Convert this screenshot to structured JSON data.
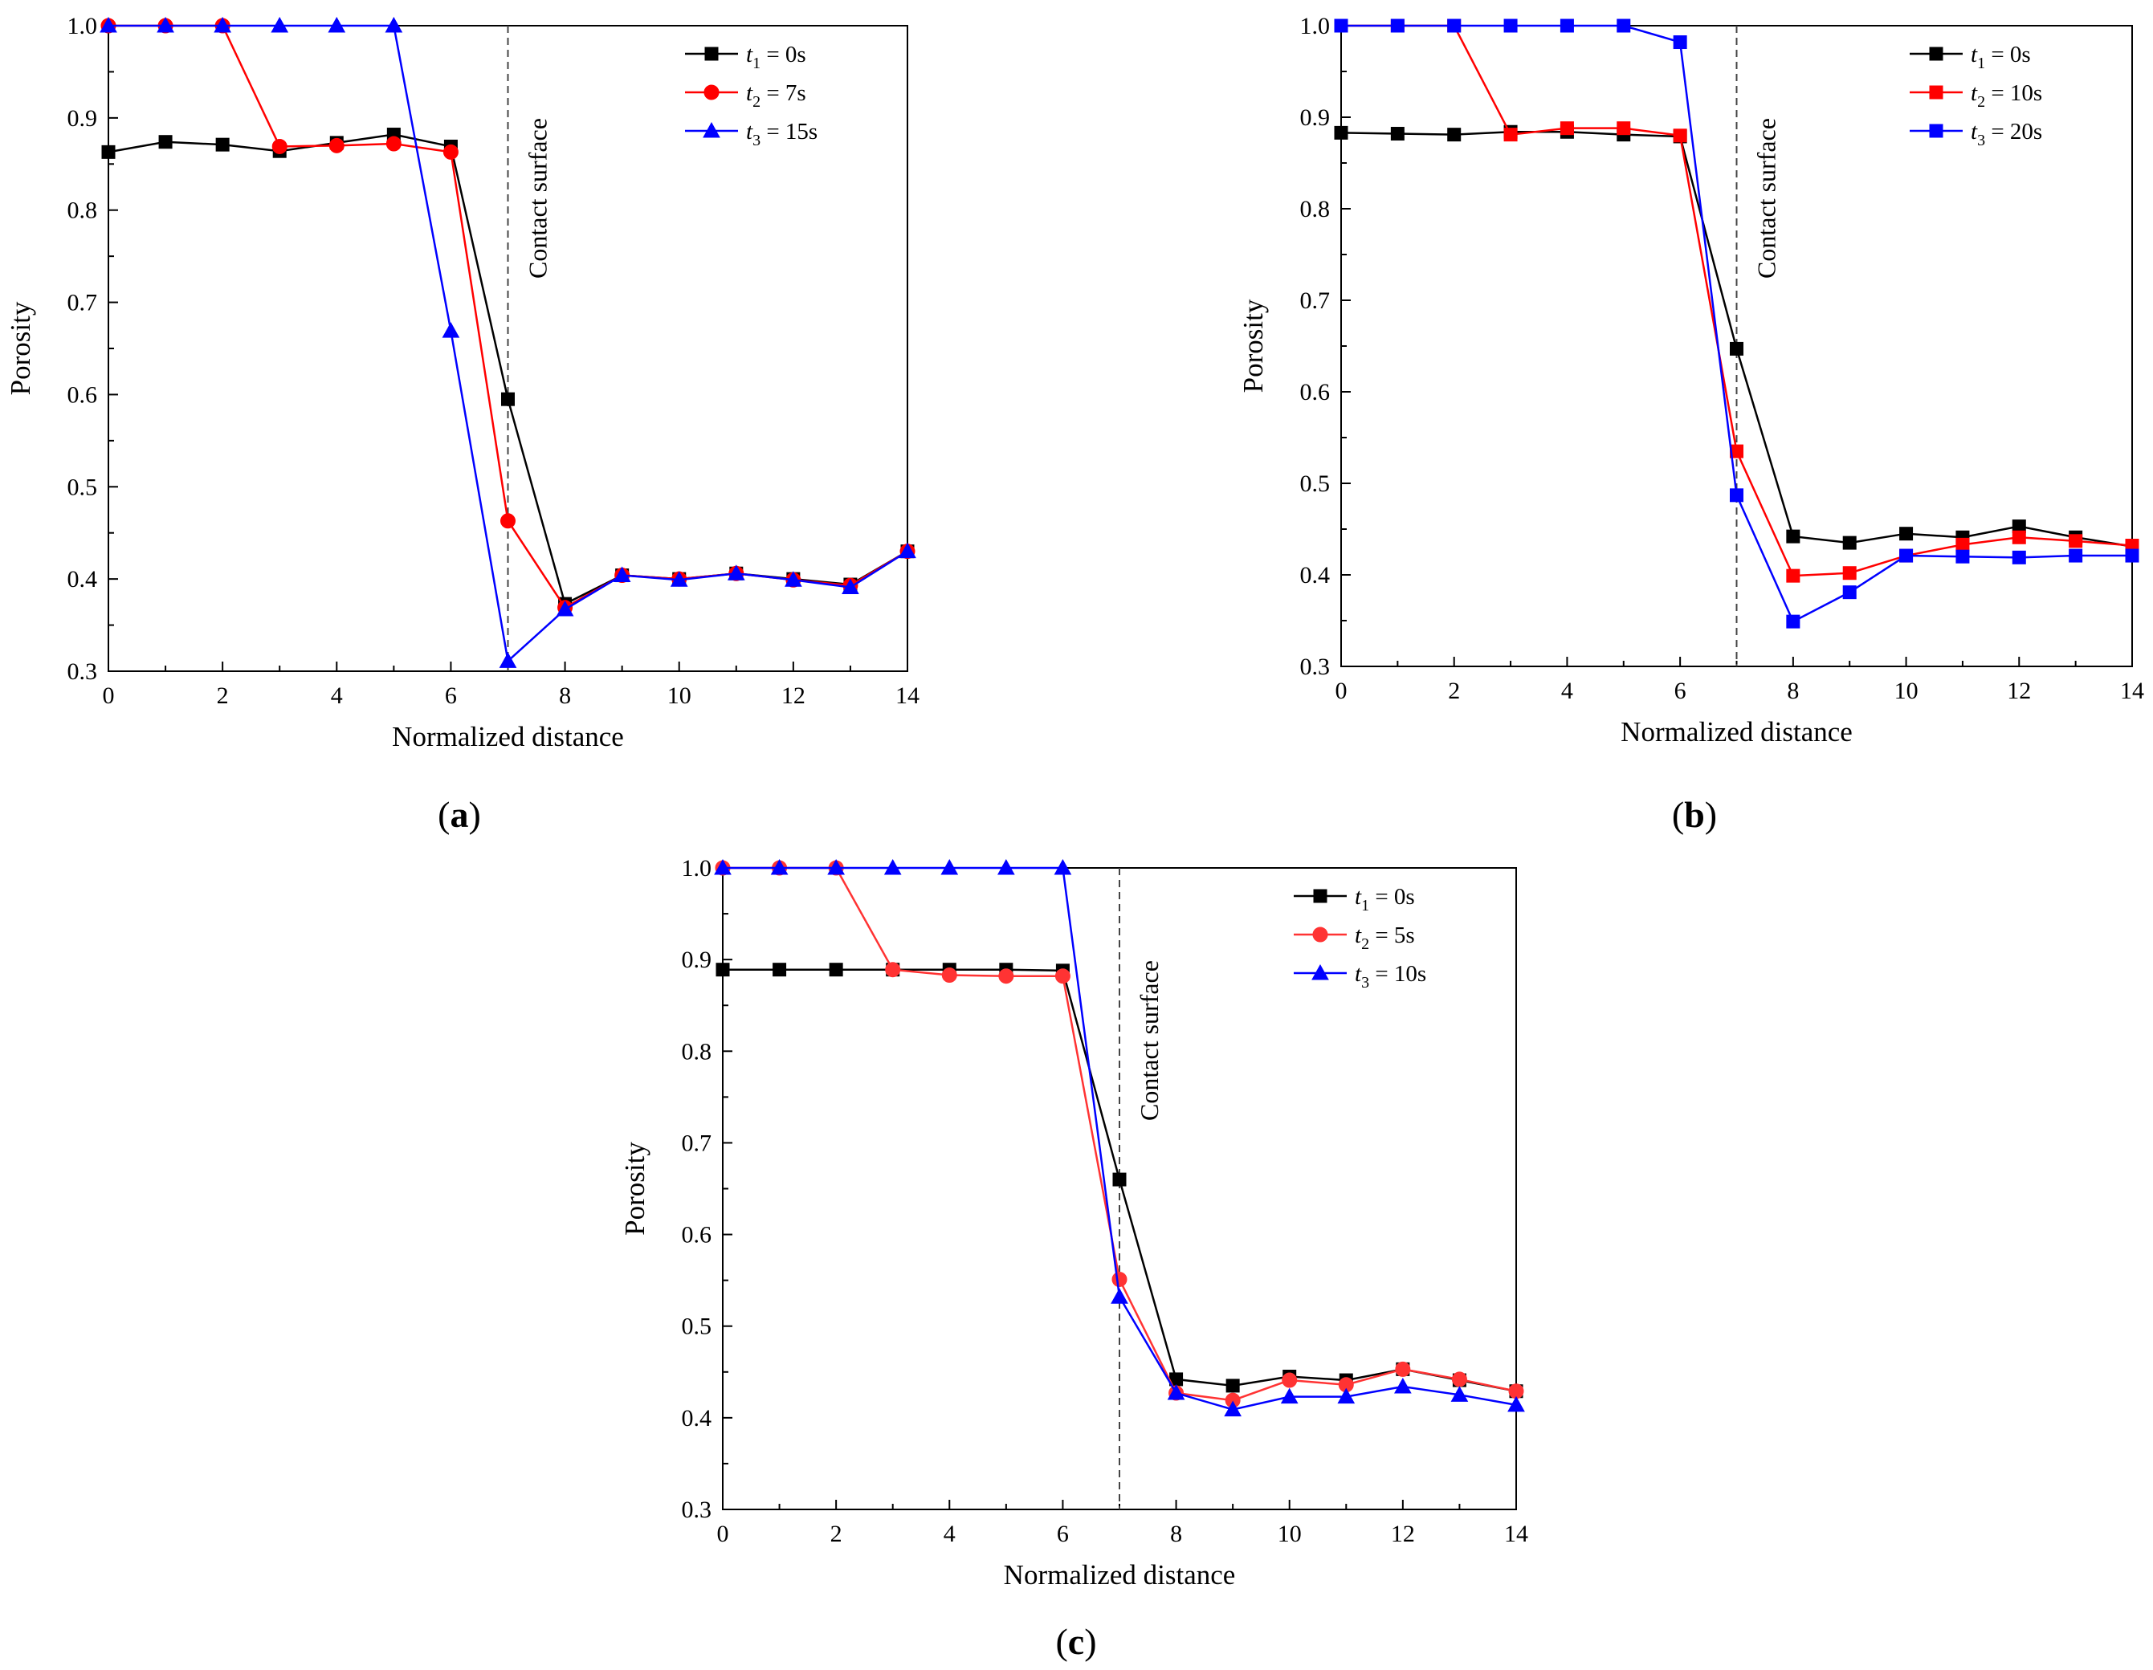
{
  "chart_data": [
    {
      "type": "line",
      "panel_label": "(a)",
      "panel_letter": "a",
      "xlabel": "Normalized distance",
      "ylabel": "Porosity",
      "xlim": [
        0,
        14
      ],
      "ylim": [
        0.3,
        1.0
      ],
      "xticks": [
        0,
        2,
        4,
        6,
        8,
        10,
        12,
        14
      ],
      "yticks": [
        "0.3",
        "0.4",
        "0.5",
        "0.6",
        "0.7",
        "0.8",
        "0.9",
        "1.0"
      ],
      "grid": false,
      "legend_position": "top-right",
      "annotation": {
        "text": "Contact surface",
        "x": 7
      },
      "x": [
        0,
        1,
        2,
        3,
        4,
        5,
        6,
        7,
        8,
        9,
        10,
        11,
        12,
        13,
        14
      ],
      "series": [
        {
          "name": "t1 = 0s",
          "sym": "t",
          "sub": "1",
          "rest": " = 0s",
          "color": "#000000",
          "marker": "square",
          "values": [
            0.863,
            0.874,
            0.871,
            0.864,
            0.873,
            0.882,
            0.869,
            0.595,
            0.373,
            0.404,
            0.4,
            0.406,
            0.4,
            0.394,
            0.43
          ]
        },
        {
          "name": "t2 = 7s",
          "sym": "t",
          "sub": "2",
          "rest": " = 7s",
          "color": "#ff0000",
          "marker": "circle",
          "values": [
            1.0,
            1.0,
            1.0,
            0.869,
            0.87,
            0.872,
            0.863,
            0.463,
            0.369,
            0.404,
            0.4,
            0.406,
            0.399,
            0.393,
            0.43
          ]
        },
        {
          "name": "t3 = 15s",
          "sym": "t",
          "sub": "3",
          "rest": " = 15s",
          "color": "#0000ff",
          "marker": "triangle",
          "values": [
            1.0,
            1.0,
            1.0,
            1.0,
            1.0,
            1.0,
            0.669,
            0.311,
            0.367,
            0.404,
            0.399,
            0.406,
            0.399,
            0.391,
            0.43
          ]
        }
      ]
    },
    {
      "type": "line",
      "panel_label": "(b)",
      "panel_letter": "b",
      "xlabel": "Normalized distance",
      "ylabel": "Porosity",
      "xlim": [
        0,
        14
      ],
      "ylim": [
        0.3,
        1.0
      ],
      "xticks": [
        0,
        2,
        4,
        6,
        8,
        10,
        12,
        14
      ],
      "yticks": [
        "0.3",
        "0.4",
        "0.5",
        "0.6",
        "0.7",
        "0.8",
        "0.9",
        "1.0"
      ],
      "grid": false,
      "legend_position": "top-right",
      "annotation": {
        "text": "Contact surface",
        "x": 7
      },
      "x": [
        0,
        1,
        2,
        3,
        4,
        5,
        6,
        7,
        8,
        9,
        10,
        11,
        12,
        13,
        14
      ],
      "series": [
        {
          "name": "t1 = 0s",
          "sym": "t",
          "sub": "1",
          "rest": " = 0s",
          "color": "#000000",
          "marker": "square",
          "values": [
            0.883,
            0.882,
            0.881,
            0.884,
            0.884,
            0.881,
            0.879,
            0.647,
            0.442,
            0.435,
            0.445,
            0.441,
            0.453,
            0.441,
            0.431
          ]
        },
        {
          "name": "t2 = 10s",
          "sym": "t",
          "sub": "2",
          "rest": " = 10s",
          "color": "#ff0000",
          "marker": "square",
          "values": [
            1.0,
            1.0,
            1.0,
            0.881,
            0.888,
            0.888,
            0.88,
            0.535,
            0.399,
            0.402,
            0.421,
            0.433,
            0.441,
            0.437,
            0.432
          ]
        },
        {
          "name": "t3 = 20s",
          "sym": "t",
          "sub": "3",
          "rest": " = 20s",
          "color": "#0000ff",
          "marker": "square",
          "values": [
            1.0,
            1.0,
            1.0,
            1.0,
            1.0,
            1.0,
            0.982,
            0.487,
            0.349,
            0.381,
            0.421,
            0.42,
            0.419,
            0.421,
            0.421
          ]
        }
      ]
    },
    {
      "type": "line",
      "panel_label": "(c)",
      "panel_letter": "c",
      "xlabel": "Normalized distance",
      "ylabel": "Porosity",
      "xlim": [
        0,
        14
      ],
      "ylim": [
        0.3,
        1.0
      ],
      "xticks": [
        0,
        2,
        4,
        6,
        8,
        10,
        12,
        14
      ],
      "yticks": [
        "0.3",
        "0.4",
        "0.5",
        "0.6",
        "0.7",
        "0.8",
        "0.9",
        "1.0"
      ],
      "grid": false,
      "legend_position": "top-right",
      "annotation": {
        "text": "Contact surface",
        "x": 7
      },
      "x": [
        0,
        1,
        2,
        3,
        4,
        5,
        6,
        7,
        8,
        9,
        10,
        11,
        12,
        13,
        14
      ],
      "series": [
        {
          "name": "t1 = 0s",
          "sym": "t",
          "sub": "1",
          "rest": " = 0s",
          "color": "#000000",
          "marker": "square",
          "values": [
            0.889,
            0.889,
            0.889,
            0.889,
            0.889,
            0.889,
            0.888,
            0.66,
            0.442,
            0.435,
            0.445,
            0.441,
            0.453,
            0.441,
            0.429
          ]
        },
        {
          "name": "t2 = 5s",
          "sym": "t",
          "sub": "2",
          "rest": " = 5s",
          "color": "#ff3333",
          "marker": "circle",
          "values": [
            1.0,
            1.0,
            1.0,
            0.889,
            0.883,
            0.882,
            0.882,
            0.551,
            0.427,
            0.419,
            0.441,
            0.436,
            0.453,
            0.442,
            0.429
          ]
        },
        {
          "name": "t3 = 10s",
          "sym": "t",
          "sub": "3",
          "rest": " = 10s",
          "color": "#0000ff",
          "marker": "triangle",
          "values": [
            1.0,
            1.0,
            1.0,
            1.0,
            1.0,
            1.0,
            1.0,
            0.532,
            0.427,
            0.409,
            0.423,
            0.423,
            0.434,
            0.425,
            0.414
          ]
        }
      ]
    }
  ]
}
